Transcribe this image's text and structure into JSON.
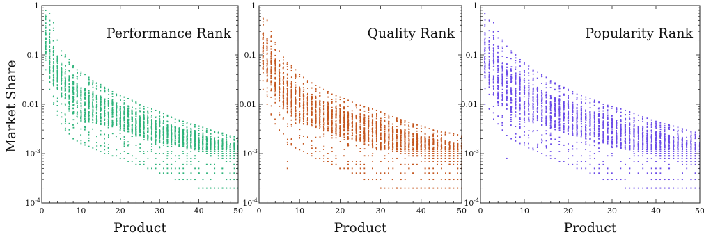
{
  "chart_data": {
    "type": "scatter",
    "shared": {
      "xlabel": "Product",
      "ylabel": "Market Share",
      "xlim": [
        0,
        50
      ],
      "ylim": [
        0.0001,
        1
      ],
      "yscale": "log",
      "x_ticks": [
        0,
        10,
        20,
        30,
        40,
        50
      ],
      "y_ticks": [
        {
          "value": 1,
          "label": "1"
        },
        {
          "value": 0.1,
          "label": "0.1"
        },
        {
          "value": 0.01,
          "label": "0.01"
        },
        {
          "value": 0.001,
          "label": "10",
          "exp": "-3"
        },
        {
          "value": 0.0001,
          "label": "10",
          "exp": "-4"
        }
      ],
      "grid": false,
      "legend": "none"
    },
    "panels": [
      {
        "title": "Performance Rank",
        "color": "#2db37a",
        "median_share": [
          0.2,
          0.1,
          0.06,
          0.04,
          0.03,
          0.022,
          0.017,
          0.014,
          0.012,
          0.01,
          0.0095,
          0.009,
          0.0085,
          0.008,
          0.0075,
          0.007,
          0.0066,
          0.0062,
          0.0058,
          0.0054,
          0.005,
          0.0047,
          0.0044,
          0.0041,
          0.0038,
          0.0035,
          0.0033,
          0.0031,
          0.0029,
          0.0027,
          0.0026,
          0.0025,
          0.0024,
          0.0023,
          0.0022,
          0.0021,
          0.002,
          0.0019,
          0.0018,
          0.0017,
          0.0016,
          0.0015,
          0.0014,
          0.0014,
          0.0013,
          0.0012,
          0.0012,
          0.0011,
          0.0011,
          0.001
        ],
        "max_share": [
          0.8,
          0.7,
          0.45,
          0.2,
          0.12,
          0.1,
          0.08,
          0.06,
          0.05,
          0.045,
          0.04,
          0.035,
          0.03,
          0.027,
          0.025,
          0.022,
          0.02,
          0.018,
          0.016,
          0.015,
          0.014,
          0.013,
          0.012,
          0.011,
          0.01,
          0.009,
          0.0085,
          0.008,
          0.0075,
          0.007,
          0.0065,
          0.006,
          0.0055,
          0.005,
          0.0048,
          0.0045,
          0.0043,
          0.004,
          0.0038,
          0.0036,
          0.0034,
          0.0032,
          0.003,
          0.0028,
          0.0027,
          0.0026,
          0.0024,
          0.0023,
          0.0022,
          0.0021
        ],
        "min_share": [
          0.05,
          0.02,
          0.01,
          0.006,
          0.004,
          0.003,
          0.0025,
          0.002,
          0.0018,
          0.0016,
          0.0015,
          0.0014,
          0.0013,
          0.0012,
          0.0011,
          0.001,
          0.001,
          0.0009,
          0.0009,
          0.0008,
          0.0008,
          0.0007,
          0.0007,
          0.0006,
          0.0006,
          0.0006,
          0.0005,
          0.0005,
          0.0005,
          0.0004,
          0.0004,
          0.0004,
          0.0004,
          0.0003,
          0.0003,
          0.0003,
          0.0003,
          0.0003,
          0.0003,
          0.0002,
          0.0002,
          0.0002,
          0.0002,
          0.0002,
          0.0002,
          0.0002,
          0.0002,
          0.0002,
          0.0002,
          0.0002
        ]
      },
      {
        "title": "Quality Rank",
        "color": "#c4561e",
        "median_share": [
          0.12,
          0.08,
          0.05,
          0.035,
          0.025,
          0.019,
          0.015,
          0.013,
          0.011,
          0.0095,
          0.0085,
          0.008,
          0.0074,
          0.0068,
          0.0062,
          0.0057,
          0.0053,
          0.0049,
          0.0046,
          0.0043,
          0.004,
          0.0037,
          0.0035,
          0.0033,
          0.0031,
          0.0029,
          0.0027,
          0.0025,
          0.0024,
          0.0023,
          0.0022,
          0.0021,
          0.002,
          0.0019,
          0.0018,
          0.0017,
          0.0016,
          0.0015,
          0.0015,
          0.0014,
          0.0013,
          0.0013,
          0.0012,
          0.0012,
          0.0011,
          0.0011,
          0.001,
          0.001,
          0.001,
          0.0009
        ],
        "max_share": [
          0.55,
          0.5,
          0.3,
          0.18,
          0.12,
          0.09,
          0.07,
          0.06,
          0.05,
          0.04,
          0.035,
          0.03,
          0.027,
          0.024,
          0.022,
          0.02,
          0.018,
          0.016,
          0.015,
          0.014,
          0.013,
          0.012,
          0.011,
          0.01,
          0.0095,
          0.009,
          0.0085,
          0.008,
          0.0075,
          0.007,
          0.0065,
          0.006,
          0.0056,
          0.0052,
          0.0049,
          0.0046,
          0.0043,
          0.004,
          0.0038,
          0.0036,
          0.0034,
          0.0032,
          0.003,
          0.0029,
          0.0028,
          0.0027,
          0.0026,
          0.0025,
          0.0024,
          0.0023
        ],
        "min_share": [
          0.02,
          0.01,
          0.006,
          0.004,
          0.003,
          0.0025,
          0.0005,
          0.0015,
          0.0013,
          0.0012,
          0.0011,
          0.001,
          0.0009,
          0.0008,
          0.0008,
          0.0007,
          0.0007,
          0.0006,
          0.0006,
          0.0005,
          0.0005,
          0.0005,
          0.0004,
          0.0004,
          0.0004,
          0.0003,
          0.0003,
          0.0003,
          0.0003,
          0.0002,
          0.0002,
          0.0002,
          0.0002,
          0.0002,
          0.0002,
          0.0002,
          0.0002,
          0.0002,
          0.0002,
          0.0002,
          0.0002,
          0.0002,
          0.0002,
          0.0002,
          0.0002,
          0.0002,
          0.0002,
          0.0002,
          0.0002,
          0.0002
        ]
      },
      {
        "title": "Popularity Rank",
        "color": "#6a4ae8",
        "median_share": [
          0.1,
          0.07,
          0.05,
          0.035,
          0.026,
          0.021,
          0.017,
          0.015,
          0.013,
          0.012,
          0.011,
          0.01,
          0.0092,
          0.0085,
          0.0078,
          0.0072,
          0.0066,
          0.0061,
          0.0056,
          0.0052,
          0.0048,
          0.0045,
          0.0042,
          0.0039,
          0.0036,
          0.0034,
          0.0032,
          0.003,
          0.0028,
          0.0026,
          0.0025,
          0.0024,
          0.0023,
          0.0022,
          0.0021,
          0.002,
          0.0019,
          0.0018,
          0.0017,
          0.0016,
          0.0015,
          0.0014,
          0.0014,
          0.0013,
          0.0012,
          0.0012,
          0.0011,
          0.0011,
          0.001,
          0.001
        ],
        "max_share": [
          0.7,
          0.5,
          0.45,
          0.3,
          0.2,
          0.15,
          0.12,
          0.1,
          0.08,
          0.07,
          0.06,
          0.05,
          0.045,
          0.04,
          0.035,
          0.03,
          0.027,
          0.024,
          0.022,
          0.02,
          0.018,
          0.016,
          0.015,
          0.014,
          0.013,
          0.012,
          0.011,
          0.01,
          0.0095,
          0.009,
          0.0085,
          0.008,
          0.0075,
          0.007,
          0.0065,
          0.006,
          0.0056,
          0.0052,
          0.0048,
          0.0045,
          0.0042,
          0.004,
          0.0038,
          0.0036,
          0.0034,
          0.0032,
          0.003,
          0.0028,
          0.0027,
          0.0026
        ],
        "min_share": [
          0.01,
          0.008,
          0.005,
          0.004,
          0.003,
          0.0008,
          0.002,
          0.0018,
          0.0016,
          0.0015,
          0.0013,
          0.0012,
          0.0011,
          0.001,
          0.0009,
          0.0008,
          0.0008,
          0.0007,
          0.0007,
          0.0006,
          0.0006,
          0.0005,
          0.0005,
          0.0005,
          0.0004,
          0.0004,
          0.0004,
          0.0003,
          0.0003,
          0.0003,
          0.0003,
          0.0003,
          0.0002,
          0.0002,
          0.0002,
          0.0002,
          0.0002,
          0.0002,
          0.0002,
          0.0002,
          0.0002,
          0.0002,
          0.0002,
          0.0002,
          0.0002,
          0.0002,
          0.0002,
          0.0002,
          0.0002,
          0.0002
        ]
      }
    ]
  }
}
